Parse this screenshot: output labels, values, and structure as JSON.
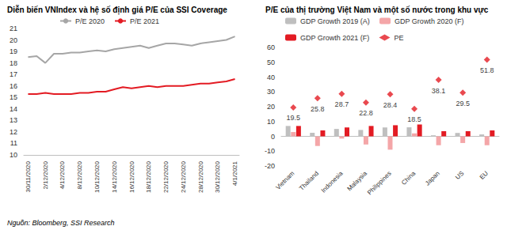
{
  "chart_data": [
    {
      "type": "line",
      "title": "Diễn biến VNIndex và hệ số định giá P/E của SSI Coverage",
      "categories": [
        "30/11/2020",
        null,
        "2/12/2020",
        null,
        "4/12/2020",
        null,
        "8/12/2020",
        null,
        "10/12/2020",
        null,
        "14/12/2020",
        null,
        "16/12/2020",
        null,
        "18/12/2020",
        null,
        "22/12/2020",
        null,
        "24/12/2020",
        null,
        "28/12/2020",
        null,
        "30/12/2020",
        null,
        "4/1/2021"
      ],
      "series": [
        {
          "name": "P/E 2020",
          "color": "#a6a6a6",
          "values": [
            18.5,
            18.6,
            18.0,
            18.8,
            18.8,
            18.9,
            18.9,
            19.0,
            19.1,
            19.0,
            19.2,
            19.3,
            19.4,
            19.5,
            19.3,
            19.5,
            19.7,
            19.7,
            19.6,
            19.5,
            19.7,
            19.8,
            19.9,
            20.0,
            20.3
          ]
        },
        {
          "name": "P/E 2021",
          "color": "#e31b23",
          "values": [
            15.3,
            15.3,
            15.4,
            15.3,
            15.3,
            15.3,
            15.4,
            15.4,
            15.5,
            15.5,
            15.7,
            15.9,
            15.8,
            15.9,
            16.0,
            15.9,
            16.0,
            16.0,
            16.0,
            16.1,
            16.2,
            16.2,
            16.3,
            16.4,
            16.6
          ]
        }
      ],
      "ylim": [
        10,
        21
      ],
      "yticks": [
        10,
        11,
        12,
        13,
        14,
        15,
        16,
        17,
        18,
        19,
        20,
        21
      ],
      "grid": false,
      "legend": "top"
    },
    {
      "type": "bar",
      "title": "P/E của thị trường Việt Nam và một số nước trong khu vực",
      "categories": [
        "Vietnam",
        "Thailand",
        "Indonesia",
        "Malaysia",
        "Philippines",
        "China",
        "Japan",
        "US",
        "EU"
      ],
      "series": [
        {
          "name": "GDP Growth 2019 (A)",
          "color": "#bfbfbf",
          "values": [
            7.0,
            2.4,
            5.0,
            4.3,
            6.0,
            6.1,
            0.7,
            2.3,
            1.3
          ]
        },
        {
          "name": "GDP Growth 2020 (F)",
          "color": "#f4a6a8",
          "values": [
            2.9,
            -6.5,
            -1.5,
            -5.5,
            -9.0,
            2.0,
            -6.0,
            -4.5,
            -6.0
          ]
        },
        {
          "name": "GDP Growth 2021 (F)",
          "color": "#e31b23",
          "values": [
            7.0,
            4.0,
            6.0,
            7.0,
            7.5,
            8.0,
            3.5,
            3.5,
            4.0
          ]
        },
        {
          "name": "PE",
          "type": "scatter",
          "marker": "diamond",
          "color": "#e31b23",
          "data_labels": true,
          "values": [
            19.5,
            25.8,
            28.7,
            22.8,
            28.4,
            18.5,
            38.1,
            29.5,
            51.8
          ]
        }
      ],
      "ylim": [
        -20,
        60
      ],
      "yticks": [
        -20,
        -10,
        0,
        10,
        20,
        30,
        40,
        50,
        60
      ],
      "grid": false,
      "legend": "top"
    }
  ],
  "source": "Nguồn: Bloomberg, SSI Research"
}
